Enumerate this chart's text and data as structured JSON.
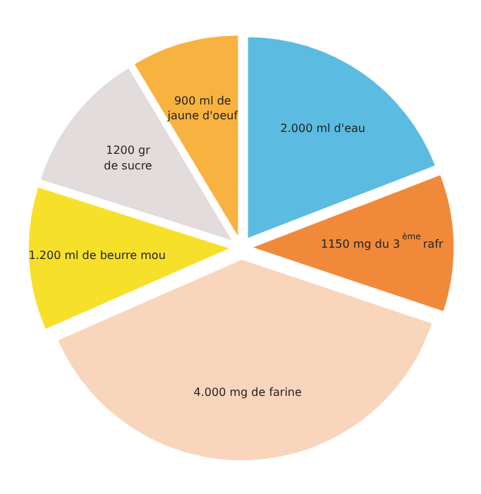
{
  "chart_data": {
    "type": "pie",
    "categories": [
      "2.000 ml d'eau",
      "1150 mg du 3$^{ème}$ rafr",
      "4.000 mg de farine",
      "1.200 ml de beurre mou",
      "1200 gr\nde sucre",
      "900 ml de\njaune d'oeuf"
    ],
    "values": [
      2000,
      1150,
      4000,
      1200,
      1200,
      900
    ],
    "colors": [
      "#5bbbe0",
      "#f08a3a",
      "#f9d5bc",
      "#f7e02a",
      "#e3dcdc",
      "#f8b240"
    ],
    "data_labels": false
  }
}
